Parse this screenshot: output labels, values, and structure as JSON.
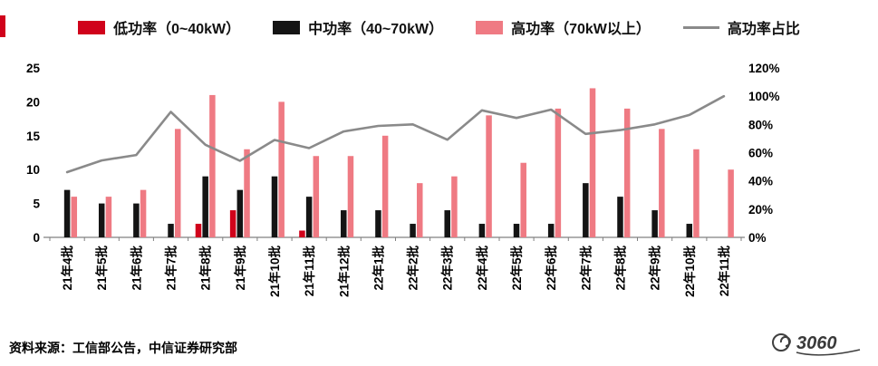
{
  "page": {
    "source": "资料来源：工信部公告，中信证券研究部",
    "watermark": "3060"
  },
  "accent_color": "#d0021b",
  "chart_data": {
    "type": "bar+line",
    "title": "",
    "legend_position": "top",
    "grid": false,
    "categories": [
      "21年4批",
      "21年5批",
      "21年6批",
      "21年7批",
      "21年8批",
      "21年9批",
      "21年10批",
      "21年11批",
      "21年12批",
      "22年1批",
      "22年2批",
      "22年3批",
      "22年4批",
      "22年5批",
      "22年6批",
      "22年7批",
      "22年8批",
      "22年9批",
      "22年10批",
      "22年11批"
    ],
    "series": [
      {
        "name": "低功率（0~40kW）",
        "type": "bar",
        "axis": "left",
        "color": "#d0021b",
        "values": [
          0,
          0,
          0,
          0,
          2,
          4,
          0,
          1,
          0,
          0,
          0,
          0,
          0,
          0,
          0,
          0,
          0,
          0,
          0,
          0
        ]
      },
      {
        "name": "中功率（40~70kW）",
        "type": "bar",
        "axis": "left",
        "color": "#141414",
        "values": [
          7,
          5,
          5,
          2,
          9,
          7,
          9,
          6,
          4,
          4,
          2,
          4,
          2,
          2,
          2,
          8,
          6,
          4,
          2,
          0
        ]
      },
      {
        "name": "高功率（70kW以上）",
        "type": "bar",
        "axis": "left",
        "color": "#ef7a83",
        "values": [
          6,
          6,
          7,
          16,
          21,
          13,
          20,
          12,
          12,
          15,
          8,
          9,
          18,
          11,
          19,
          22,
          19,
          16,
          13,
          10
        ]
      },
      {
        "name": "高功率占比",
        "type": "line",
        "axis": "right",
        "color": "#8a8a8a",
        "values": [
          46.2,
          54.5,
          58.3,
          88.9,
          65.6,
          54.2,
          69,
          63.2,
          75,
          78.9,
          80,
          69.2,
          90,
          84.6,
          90.5,
          73.3,
          76,
          80,
          86.7,
          100
        ]
      }
    ],
    "left_axis": {
      "min": 0,
      "max": 25,
      "ticks": [
        0,
        5,
        10,
        15,
        20,
        25
      ]
    },
    "right_axis": {
      "min": 0,
      "max": 120,
      "tick_labels": [
        "0%",
        "20%",
        "40%",
        "60%",
        "80%",
        "100%",
        "120%"
      ]
    }
  }
}
